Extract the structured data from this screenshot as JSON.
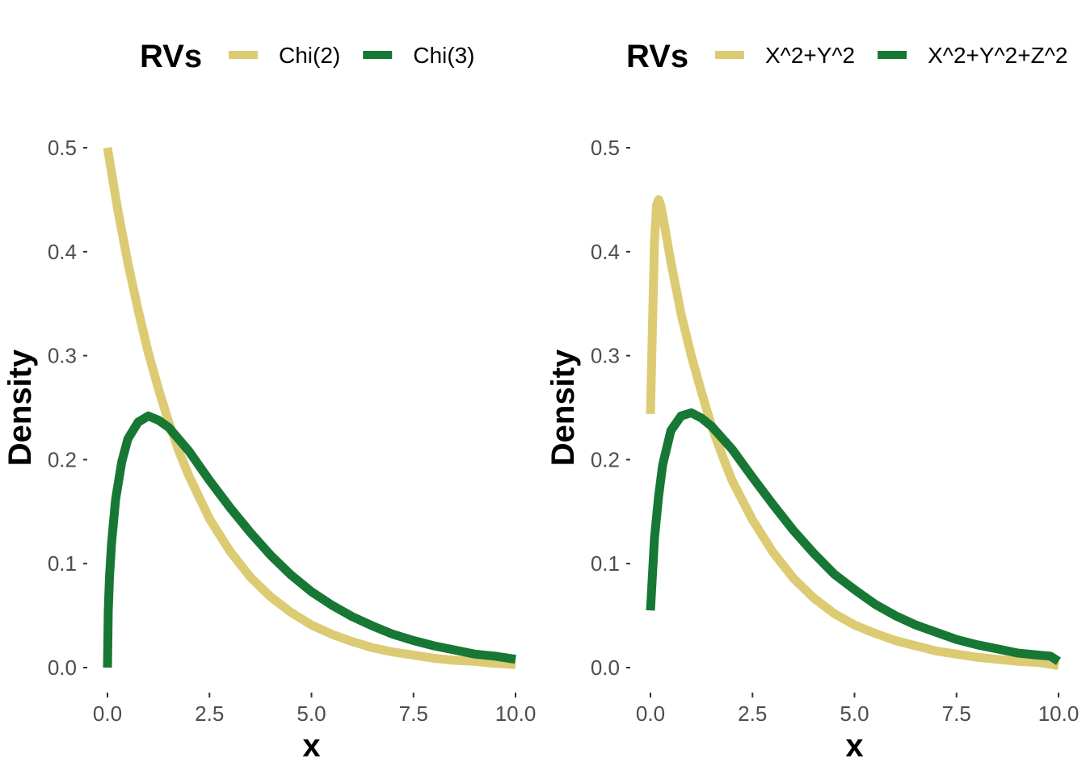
{
  "chart_data": [
    {
      "type": "line",
      "legend_title": "RVs",
      "legend_position": "top",
      "xlabel": "x",
      "ylabel": "Density",
      "xlim": [
        0,
        10
      ],
      "ylim": [
        0,
        0.5
      ],
      "x_ticks": [
        0,
        2.5,
        5,
        7.5,
        10
      ],
      "x_tick_labels": [
        "0.0",
        "2.5",
        "5.0",
        "7.5",
        "10.0"
      ],
      "y_ticks": [
        0,
        0.1,
        0.2,
        0.3,
        0.4,
        0.5
      ],
      "y_tick_labels": [
        "0.0",
        "0.1",
        "0.2",
        "0.3",
        "0.4",
        "0.5"
      ],
      "grid": false,
      "series": [
        {
          "name": "Chi(2)",
          "color": "#dccb73",
          "x": [
            0,
            0.25,
            0.5,
            0.75,
            1.0,
            1.25,
            1.5,
            1.75,
            2.0,
            2.5,
            3.0,
            3.5,
            4.0,
            4.5,
            5.0,
            5.5,
            6.0,
            6.5,
            7.0,
            7.5,
            8.0,
            8.5,
            9.0,
            9.5,
            10.0
          ],
          "y": [
            0.5,
            0.441,
            0.389,
            0.344,
            0.303,
            0.268,
            0.236,
            0.208,
            0.184,
            0.143,
            0.112,
            0.087,
            0.068,
            0.053,
            0.041,
            0.032,
            0.025,
            0.019,
            0.015,
            0.012,
            0.009,
            0.007,
            0.006,
            0.004,
            0.003
          ]
        },
        {
          "name": "Chi(3)",
          "color": "#177734",
          "x": [
            0,
            0.02,
            0.05,
            0.1,
            0.2,
            0.35,
            0.5,
            0.75,
            1.0,
            1.25,
            1.5,
            2.0,
            2.5,
            3.0,
            3.5,
            4.0,
            4.5,
            5.0,
            5.5,
            6.0,
            6.5,
            7.0,
            7.5,
            8.0,
            8.5,
            9.0,
            9.5,
            10.0
          ],
          "y": [
            0,
            0.055,
            0.087,
            0.12,
            0.162,
            0.198,
            0.22,
            0.236,
            0.242,
            0.238,
            0.231,
            0.208,
            0.18,
            0.154,
            0.13,
            0.108,
            0.089,
            0.073,
            0.06,
            0.049,
            0.04,
            0.032,
            0.026,
            0.021,
            0.017,
            0.013,
            0.011,
            0.008
          ]
        }
      ]
    },
    {
      "type": "line",
      "legend_title": "RVs",
      "legend_position": "top",
      "xlabel": "x",
      "ylabel": "Density",
      "xlim": [
        0,
        10
      ],
      "ylim": [
        0,
        0.5
      ],
      "x_ticks": [
        0,
        2.5,
        5,
        7.5,
        10
      ],
      "x_tick_labels": [
        "0.0",
        "2.5",
        "5.0",
        "7.5",
        "10.0"
      ],
      "y_ticks": [
        0,
        0.1,
        0.2,
        0.3,
        0.4,
        0.5
      ],
      "y_tick_labels": [
        "0.0",
        "0.1",
        "0.2",
        "0.3",
        "0.4",
        "0.5"
      ],
      "grid": false,
      "series": [
        {
          "name": "X^2+Y^2",
          "color": "#dccb73",
          "x": [
            0,
            0.05,
            0.1,
            0.15,
            0.2,
            0.25,
            0.3,
            0.5,
            0.75,
            1.0,
            1.25,
            1.5,
            1.75,
            2.0,
            2.5,
            3.0,
            3.5,
            4.0,
            4.5,
            5.0,
            5.5,
            6.0,
            6.5,
            7.0,
            7.5,
            8.0,
            8.5,
            9.0,
            9.5,
            10.0
          ],
          "y": [
            0.244,
            0.33,
            0.41,
            0.445,
            0.45,
            0.445,
            0.435,
            0.39,
            0.34,
            0.3,
            0.265,
            0.232,
            0.205,
            0.18,
            0.142,
            0.111,
            0.086,
            0.067,
            0.052,
            0.041,
            0.033,
            0.026,
            0.021,
            0.016,
            0.013,
            0.01,
            0.008,
            0.006,
            0.005,
            0.002
          ]
        },
        {
          "name": "X^2+Y^2+Z^2",
          "color": "#177734",
          "x": [
            0,
            0.05,
            0.1,
            0.2,
            0.3,
            0.5,
            0.75,
            1.0,
            1.25,
            1.5,
            2.0,
            2.5,
            3.0,
            3.5,
            4.0,
            4.5,
            5.0,
            5.5,
            6.0,
            6.5,
            7.0,
            7.5,
            8.0,
            8.5,
            9.0,
            9.5,
            9.8,
            10.0
          ],
          "y": [
            0.055,
            0.09,
            0.125,
            0.165,
            0.195,
            0.228,
            0.242,
            0.245,
            0.24,
            0.232,
            0.21,
            0.183,
            0.157,
            0.132,
            0.11,
            0.09,
            0.075,
            0.061,
            0.05,
            0.041,
            0.034,
            0.027,
            0.022,
            0.018,
            0.014,
            0.012,
            0.011,
            0.006
          ]
        }
      ]
    }
  ]
}
